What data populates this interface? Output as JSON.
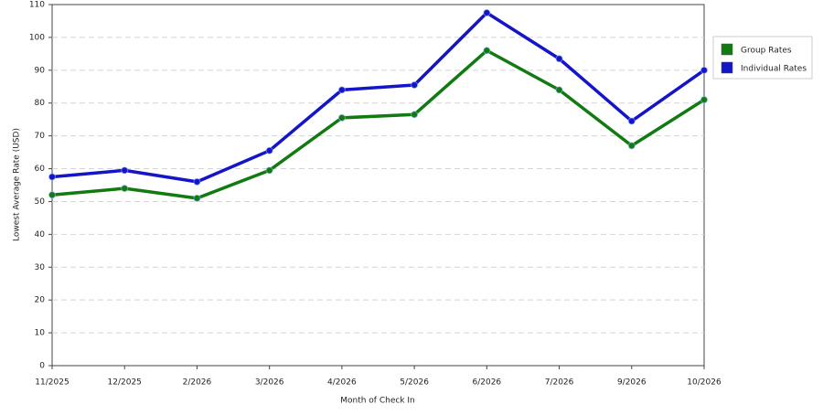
{
  "chart_data": {
    "type": "line",
    "x_label": "Month of Check In",
    "y_label": "Lowest Average Rate (USD)",
    "categories": [
      "11/2025",
      "12/2025",
      "2/2026",
      "3/2026",
      "4/2026",
      "5/2026",
      "6/2026",
      "7/2026",
      "9/2026",
      "10/2026"
    ],
    "series": [
      {
        "name": "Group Rates",
        "color": "#117a11",
        "values": [
          52,
          54,
          51,
          59.5,
          75.5,
          76.5,
          96,
          84,
          67,
          81
        ]
      },
      {
        "name": "Individual Rates",
        "color": "#1414c8",
        "values": [
          57.5,
          59.5,
          56,
          65.5,
          84,
          85.5,
          107.5,
          93.5,
          74.5,
          90
        ]
      }
    ],
    "ylim": [
      0,
      110
    ],
    "yticks": [
      0,
      10,
      20,
      30,
      40,
      50,
      60,
      70,
      80,
      90,
      100,
      110
    ],
    "grid": true,
    "legend": "right"
  }
}
